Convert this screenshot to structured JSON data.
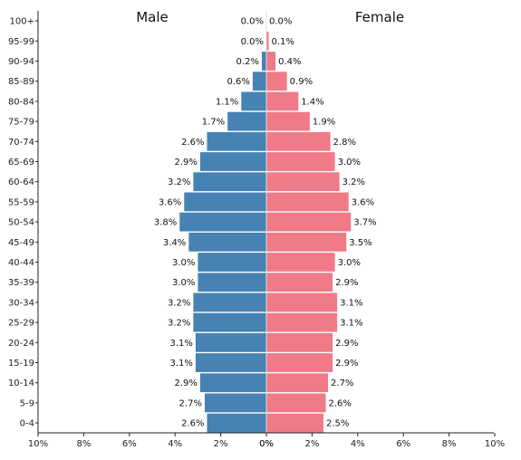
{
  "chart_data": {
    "type": "bar",
    "orientation": "horizontal",
    "subtype": "population-pyramid",
    "categories": [
      "100+",
      "95-99",
      "90-94",
      "85-89",
      "80-84",
      "75-79",
      "70-74",
      "65-69",
      "60-64",
      "55-59",
      "50-54",
      "45-49",
      "40-44",
      "35-39",
      "30-34",
      "25-29",
      "20-24",
      "15-19",
      "10-14",
      "5-9",
      "0-4"
    ],
    "series": [
      {
        "name": "Male",
        "color": "#4682b4",
        "values": [
          0.0,
          0.0,
          0.2,
          0.6,
          1.1,
          1.7,
          2.6,
          2.9,
          3.2,
          3.6,
          3.8,
          3.4,
          3.0,
          3.0,
          3.2,
          3.2,
          3.1,
          3.1,
          2.9,
          2.7,
          2.6
        ],
        "labels": [
          "0.0%",
          "0.0%",
          "0.2%",
          "0.6%",
          "1.1%",
          "1.7%",
          "2.6%",
          "2.9%",
          "3.2%",
          "3.6%",
          "3.8%",
          "3.4%",
          "3.0%",
          "3.0%",
          "3.2%",
          "3.2%",
          "3.1%",
          "3.1%",
          "2.9%",
          "2.7%",
          "2.6%"
        ]
      },
      {
        "name": "Female",
        "color": "#f07a88",
        "values": [
          0.0,
          0.1,
          0.4,
          0.9,
          1.4,
          1.9,
          2.8,
          3.0,
          3.2,
          3.6,
          3.7,
          3.5,
          3.0,
          2.9,
          3.1,
          3.1,
          2.9,
          2.9,
          2.7,
          2.6,
          2.5
        ],
        "labels": [
          "0.0%",
          "0.1%",
          "0.4%",
          "0.9%",
          "1.4%",
          "1.9%",
          "2.8%",
          "3.0%",
          "3.2%",
          "3.6%",
          "3.7%",
          "3.5%",
          "3.0%",
          "2.9%",
          "3.1%",
          "3.1%",
          "2.9%",
          "2.9%",
          "2.7%",
          "2.6%",
          "2.5%"
        ]
      }
    ],
    "x_ticks_left": [
      "10%",
      "8%",
      "6%",
      "4%",
      "2%",
      "0%"
    ],
    "x_ticks_right": [
      "0%",
      "2%",
      "4%",
      "6%",
      "8%",
      "10%"
    ],
    "xlim": [
      0,
      10
    ],
    "grid": false,
    "legend": "none"
  }
}
